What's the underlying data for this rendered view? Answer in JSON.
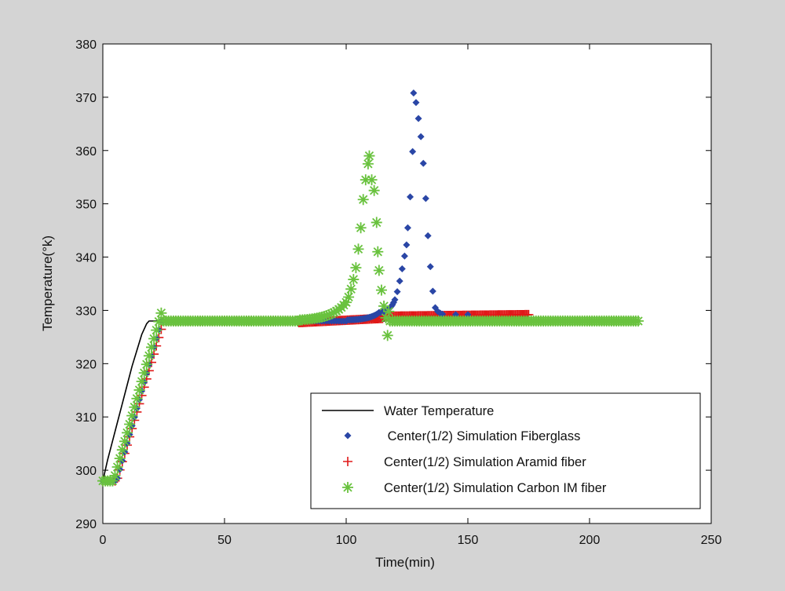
{
  "chart_data": {
    "type": "scatter",
    "title": "",
    "xlabel": "Time(min)",
    "ylabel": "Temperature(°k)",
    "xlim": [
      0,
      250
    ],
    "ylim": [
      290,
      380
    ],
    "xticks": [
      "0",
      "50",
      "100",
      "150",
      "200",
      "250"
    ],
    "yticks": [
      "290",
      "300",
      "310",
      "320",
      "330",
      "340",
      "350",
      "360",
      "370",
      "380"
    ],
    "grid": false,
    "legend_position": "bottom-right",
    "legend": [
      "Water Temperature",
      " Center(1/2) Simulation Fiberglass",
      "Center(1/2) Simulation Aramid fiber",
      "Center(1/2) Simulation Carbon IM fiber"
    ],
    "series": [
      {
        "name": "Water Temperature",
        "kind": "line",
        "color": "#000000",
        "x": [
          0,
          2,
          4,
          6,
          8,
          10,
          12,
          14,
          16,
          18,
          19,
          20,
          22,
          25,
          30,
          60,
          100,
          150,
          200,
          220
        ],
        "y": [
          298,
          302,
          305.5,
          309,
          312.5,
          316,
          319.5,
          322.5,
          325.5,
          327.5,
          328,
          328,
          328,
          328,
          328,
          328,
          328,
          328,
          328,
          328
        ]
      },
      {
        "name": " Center(1/2) Simulation Fiberglass",
        "kind": "marker",
        "marker": "diamond",
        "color": "#2a46a6",
        "segments": [
          {
            "x_start": 0,
            "x_end": 5,
            "step": 1,
            "y": 298
          },
          {
            "x_start": 6,
            "x_end": 24,
            "step": 1,
            "y_start": 298.5,
            "y_end": 328
          },
          {
            "x_start": 25,
            "x_end": 100,
            "step": 1,
            "y": 328
          },
          {
            "x_start": 100.5,
            "x_end": 113,
            "step": 0.5,
            "y_start": 328.2,
            "y_end": 329.4,
            "curve": "exp"
          },
          {
            "x_start": 113.5,
            "x_end": 120,
            "step": 0.5,
            "y_start": 329.6,
            "y_end": 332,
            "curve": "exp"
          }
        ],
        "points": [
          [
            121,
            333.5
          ],
          [
            122,
            335.5
          ],
          [
            123,
            337.8
          ],
          [
            124,
            340.2
          ],
          [
            124.8,
            342.3
          ],
          [
            125.3,
            345.5
          ],
          [
            126.3,
            351.3
          ],
          [
            127.3,
            359.8
          ],
          [
            127.7,
            370.8
          ],
          [
            128.7,
            369
          ],
          [
            129.7,
            366
          ],
          [
            130.7,
            362.6
          ],
          [
            131.7,
            357.6
          ],
          [
            132.7,
            351
          ],
          [
            133.6,
            344
          ],
          [
            134.6,
            338.2
          ],
          [
            135.6,
            333.6
          ],
          [
            136.6,
            330.5
          ],
          [
            137.6,
            329.8
          ],
          [
            138.6,
            329.5
          ],
          [
            139.6,
            329.3
          ],
          [
            145,
            329.2
          ],
          [
            150,
            329.2
          ]
        ]
      },
      {
        "name": "Center(1/2) Simulation Aramid fiber",
        "kind": "marker",
        "marker": "plus",
        "color": "#e01818",
        "segments": [
          {
            "x_start": 0,
            "x_end": 5,
            "step": 1,
            "y": 298
          },
          {
            "x_start": 6,
            "x_end": 25,
            "step": 1,
            "y_start": 298.5,
            "y_end": 328
          },
          {
            "x_start": 26,
            "x_end": 80,
            "step": 1,
            "y": 328
          },
          {
            "x_start": 80.5,
            "x_end": 115,
            "step": 0.5,
            "y_start": 327.7,
            "y_end": 328.5
          },
          {
            "x_start": 115.5,
            "x_end": 175,
            "step": 0.5,
            "y_start": 328.9,
            "y_end": 329.2
          }
        ],
        "points": []
      },
      {
        "name": "Center(1/2) Simulation Carbon IM fiber",
        "kind": "marker",
        "marker": "asterisk",
        "color": "#69c23e",
        "segments": [
          {
            "x_start": 0,
            "x_end": 4,
            "step": 1,
            "y": 298
          },
          {
            "x_start": 5,
            "x_end": 24,
            "step": 1,
            "y_start": 299,
            "y_end": 329.5
          },
          {
            "x_start": 25,
            "x_end": 80,
            "step": 1,
            "y": 328
          },
          {
            "x_start": 81,
            "x_end": 100,
            "step": 1,
            "y_start": 328.2,
            "y_end": 331.5,
            "curve": "exp"
          },
          {
            "x_start": 118,
            "x_end": 220,
            "step": 1,
            "y": 328
          }
        ],
        "points": [
          [
            101,
            332.5
          ],
          [
            102,
            334
          ],
          [
            103,
            335.8
          ],
          [
            104,
            338
          ],
          [
            105,
            341.5
          ],
          [
            106,
            345.5
          ],
          [
            107,
            350.8
          ],
          [
            108,
            354.5
          ],
          [
            109,
            357.5
          ],
          [
            109.5,
            359
          ],
          [
            110.5,
            354.5
          ],
          [
            111.5,
            352.5
          ],
          [
            112.5,
            346.5
          ],
          [
            113,
            341
          ],
          [
            113.5,
            337.5
          ],
          [
            114.5,
            333.8
          ],
          [
            115.5,
            330.8
          ],
          [
            116.3,
            328.6
          ],
          [
            117,
            325.3
          ],
          [
            117.5,
            329.8
          ]
        ]
      }
    ]
  }
}
